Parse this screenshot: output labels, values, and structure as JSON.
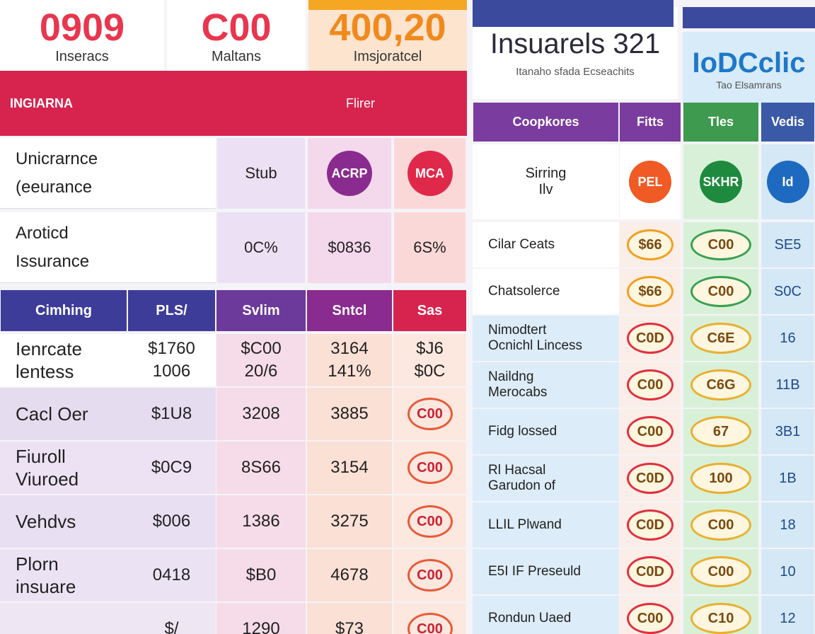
{
  "stats": [
    {
      "value": "0909",
      "label": "Inseracs"
    },
    {
      "value": "C00",
      "label": "Maltans"
    },
    {
      "value": "400,20",
      "label": "Imsjoratcel"
    }
  ],
  "right_header": {
    "title": "Insuarels 321",
    "subtitle": "Itanaho sfada Ecseachits"
  },
  "brand": {
    "title": "IoDCclic",
    "subtitle": "Tao Elsamrans"
  },
  "section_bar": {
    "title": "INGIARNA",
    "right": "Flirer"
  },
  "features": [
    {
      "label": [
        "Unicrarnce",
        "(eeurance"
      ],
      "cells": [
        "Stub",
        "ACRP",
        "MCA"
      ]
    },
    {
      "label": [
        "Aroticd",
        "Issurance"
      ],
      "cells": [
        "0C%",
        "$0836",
        "6S%"
      ]
    }
  ],
  "table": {
    "columns": [
      "Cimhing",
      "PLS/",
      "Svlim",
      "Sntcl",
      "Sas"
    ],
    "rows": [
      [
        [
          "Ienrcate",
          "lentess"
        ],
        [
          "$1760",
          "1006"
        ],
        [
          "$C00",
          "20/6"
        ],
        [
          "3164",
          "141%"
        ],
        [
          "$J6",
          "$0C"
        ]
      ],
      [
        [
          "Cacl Oer"
        ],
        [
          "$1U8"
        ],
        [
          "3208"
        ],
        [
          "3885"
        ],
        [
          "C00"
        ]
      ],
      [
        [
          "Fiuroll",
          "Viuroed"
        ],
        [
          "$0C9"
        ],
        [
          "8S66"
        ],
        [
          "3154"
        ],
        [
          "C00"
        ]
      ],
      [
        [
          "Vehdvs"
        ],
        [
          "$006"
        ],
        [
          "1386"
        ],
        [
          "3275"
        ],
        [
          "C00"
        ]
      ],
      [
        [
          "Plorn",
          "insuare"
        ],
        [
          "0418"
        ],
        [
          "$B0"
        ],
        [
          "4678"
        ],
        [
          "C00"
        ]
      ],
      [
        [
          ""
        ],
        [
          "$/"
        ],
        [
          "1290"
        ],
        [
          "$73"
        ],
        [
          "C00"
        ]
      ]
    ]
  },
  "right_table": {
    "columns": [
      "Coopkores",
      "Fitts",
      "Tles",
      "Vedis"
    ],
    "icon_row": {
      "label": [
        "Sirring",
        "Ilv"
      ],
      "cells": [
        "PEL",
        "SKHR",
        "Id"
      ]
    },
    "rows": [
      [
        [
          "Cilar Ceats"
        ],
        "$66",
        "C00",
        "SE5"
      ],
      [
        [
          "Chatsolerce"
        ],
        "$66",
        "C00",
        "S0C"
      ],
      [
        [
          "Nimodtert",
          "Ocnichl Lincess"
        ],
        "C0D",
        "C6E",
        "16"
      ],
      [
        [
          "Naildng",
          "Merocabs"
        ],
        "C00",
        "C6G",
        "11B"
      ],
      [
        [
          "Fidg lossed"
        ],
        "C00",
        "67",
        "3B1"
      ],
      [
        [
          "Rl Hacsal",
          "Garudon of"
        ],
        "C0D",
        "100",
        "1B"
      ],
      [
        [
          "LLIL Plwand"
        ],
        "C0D",
        "C00",
        "18"
      ],
      [
        [
          "E5I IF Preseuld"
        ],
        "C0D",
        "C00",
        "10"
      ],
      [
        [
          "Rondun Uaed"
        ],
        "C00",
        "C10",
        "12"
      ]
    ]
  }
}
